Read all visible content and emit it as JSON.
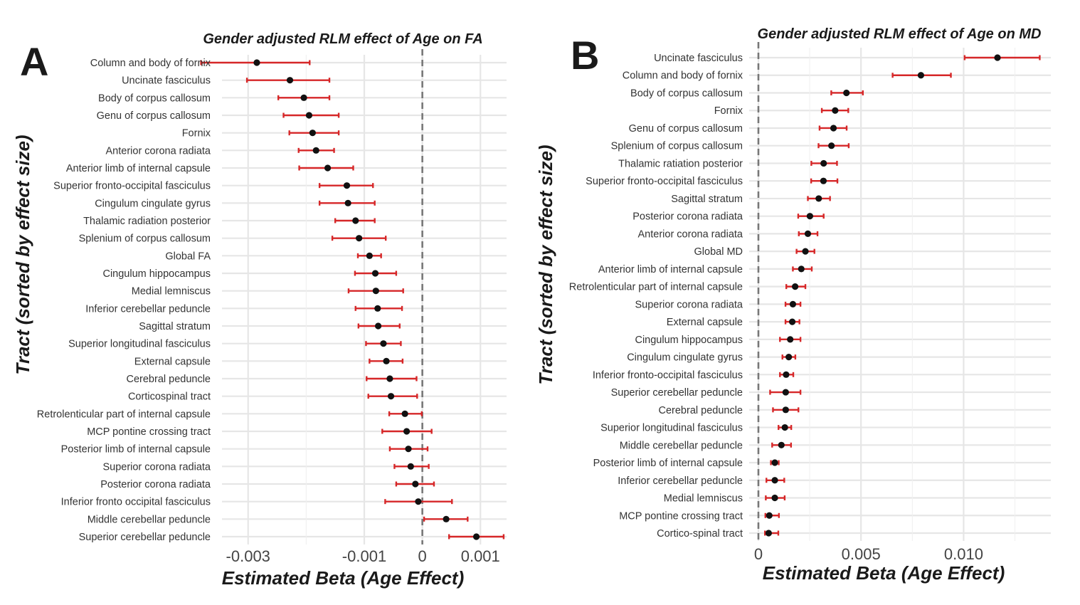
{
  "chart_data": [
    {
      "type": "scatter",
      "panel_tag": "A",
      "title": "Gender adjusted RLM effect of Age on FA",
      "xlabel": "Estimated Beta (Age Effect)",
      "ylabel": "Tract (sorted by effect size)",
      "xlim": [
        -0.00345,
        0.00145
      ],
      "xticks": [
        -0.003,
        -0.001,
        0,
        0.001
      ],
      "xtick_labels": [
        "-0.003",
        "-0.001",
        "0",
        "0.001"
      ],
      "xminor": [
        -0.002,
        0
      ],
      "reference_line": 0,
      "grid": true,
      "categories": [
        "Column and body of fornix",
        "Uncinate fasciculus",
        "Body of corpus callosum",
        "Genu of corpus callosum",
        "Fornix",
        "Anterior corona radiata",
        "Anterior limb of internal capsule",
        "Superior fronto-occipital fasciculus",
        "Cingulum cingulate gyrus",
        "Thalamic radiation posterior",
        "Splenium of corpus callosum",
        "Global FA",
        "Cingulum hippocampus",
        "Medial lemniscus",
        "Inferior cerebellar peduncle",
        "Sagittal stratum",
        "Superior longitudinal fasciculus",
        "External capsule",
        "Cerebral peduncle",
        "Corticospinal tract",
        "Retrolenticular part of internal capsule",
        "MCP pontine crossing tract",
        "Posterior limb of internal capsule",
        "Superior corona radiata",
        "Posterior corona radiata",
        "Inferior fronto occipital fasciculus",
        "Middle cerebellar peduncle",
        "Superior cerebellar peduncle"
      ],
      "estimate": [
        -0.00285,
        -0.00228,
        -0.00204,
        -0.00195,
        -0.00189,
        -0.00183,
        -0.00163,
        -0.0013,
        -0.00128,
        -0.00115,
        -0.00109,
        -0.00091,
        -0.00081,
        -0.0008,
        -0.00077,
        -0.00076,
        -0.00067,
        -0.00062,
        -0.00056,
        -0.00054,
        -0.0003,
        -0.00027,
        -0.00024,
        -0.0002,
        -0.00012,
        -7e-05,
        0.00041,
        0.00093
      ],
      "ci_low": [
        -0.00381,
        -0.00302,
        -0.00248,
        -0.00239,
        -0.00229,
        -0.00213,
        -0.00212,
        -0.00177,
        -0.00177,
        -0.0015,
        -0.00155,
        -0.00111,
        -0.00116,
        -0.00127,
        -0.00115,
        -0.0011,
        -0.00097,
        -0.00091,
        -0.00096,
        -0.00093,
        -0.00057,
        -0.00069,
        -0.00056,
        -0.00048,
        -0.00045,
        -0.00064,
        3e-05,
        0.00046
      ],
      "ci_high": [
        -0.00194,
        -0.0016,
        -0.0016,
        -0.00144,
        -0.00144,
        -0.00152,
        -0.00119,
        -0.00085,
        -0.00082,
        -0.00082,
        -0.00063,
        -0.00071,
        -0.00045,
        -0.00033,
        -0.00035,
        -0.00039,
        -0.00037,
        -0.00034,
        -0.0001,
        -9e-05,
        -1e-05,
        0.00016,
        9e-05,
        0.00011,
        0.0002,
        0.00051,
        0.00078,
        0.0014
      ]
    },
    {
      "type": "scatter",
      "panel_tag": "B",
      "title": "Gender adjusted RLM effect of Age on MD",
      "xlabel": "Estimated Beta (Age Effect)",
      "ylabel": "Tract (sorted by effect size)",
      "xlim": [
        -0.00045,
        0.01425
      ],
      "xticks": [
        0,
        0.005,
        0.01
      ],
      "xtick_labels": [
        "0",
        "0.005",
        "0.010"
      ],
      "xminor": [
        0.0025,
        0.0075,
        0.0125
      ],
      "reference_line": 0,
      "grid": true,
      "categories": [
        "Uncinate fasciculus",
        "Column and body of fornix",
        "Body of corpus callosum",
        "Fornix",
        "Genu of corpus callosum",
        "Splenium of corpus callosum",
        "Thalamic ratiation posterior",
        "Superior fronto-occipital fasciculus",
        "Sagittal stratum",
        "Posterior corona radiata",
        "Anterior corona radiata",
        "Global MD",
        "Anterior limb of internal capsule",
        "Retrolenticular part of internal capsule",
        "Superior corona radiata",
        "External capsule",
        "Cingulum hippocampus",
        "Cingulum cingulate gyrus",
        "Inferior fronto-occipital fasciculus",
        "Superior cerebellar peduncle",
        "Cerebral peduncle",
        "Superior longitudinal fasciculus",
        "Middle cerebellar peduncle",
        "Posterior limb of internal capsule",
        "Inferior cerebellar peduncle",
        "Medial lemniscus",
        "MCP pontine crossing tract",
        "Cortico-spinal tract"
      ],
      "estimate": [
        0.01165,
        0.00792,
        0.00429,
        0.00374,
        0.00366,
        0.00356,
        0.00318,
        0.00317,
        0.00294,
        0.00251,
        0.00241,
        0.00229,
        0.00209,
        0.00179,
        0.00168,
        0.00165,
        0.00155,
        0.00148,
        0.00135,
        0.00133,
        0.00133,
        0.00129,
        0.00112,
        0.0008,
        0.0008,
        0.0008,
        0.00053,
        0.0005
      ],
      "ci_low": [
        0.01005,
        0.00654,
        0.00355,
        0.00309,
        0.00298,
        0.00293,
        0.00258,
        0.00257,
        0.00241,
        0.00194,
        0.00197,
        0.00186,
        0.00168,
        0.00136,
        0.00132,
        0.00132,
        0.00105,
        0.00117,
        0.00105,
        0.00057,
        0.00071,
        0.00098,
        0.00067,
        0.00061,
        0.00039,
        0.00036,
        0.00034,
        0.00032
      ],
      "ci_high": [
        0.01371,
        0.00938,
        0.00509,
        0.00438,
        0.0043,
        0.0044,
        0.00383,
        0.00385,
        0.00349,
        0.00318,
        0.00288,
        0.00273,
        0.0026,
        0.00229,
        0.00205,
        0.002,
        0.00205,
        0.0018,
        0.0017,
        0.00205,
        0.00195,
        0.0016,
        0.00159,
        0.00099,
        0.00126,
        0.00128,
        0.001,
        0.00097
      ]
    }
  ]
}
